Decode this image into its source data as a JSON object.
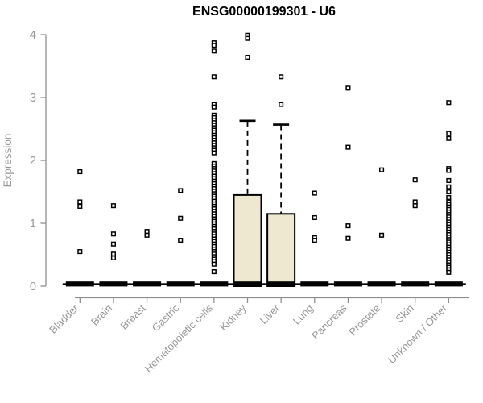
{
  "chart_data": {
    "type": "boxplot",
    "title": "ENSG00000199301 - U6",
    "ylabel": "Expression",
    "xlabel": "",
    "ylim": [
      0,
      4
    ],
    "yticks": [
      0,
      1,
      2,
      3,
      4
    ],
    "grid": false,
    "legend": "none",
    "categories": [
      "Bladder",
      "Brain",
      "Breast",
      "Gastric",
      "Hematopoietic cells",
      "Kidney",
      "Liver",
      "Lung",
      "Pancreas",
      "Prostate",
      "Skin",
      "Unknown / Other"
    ],
    "colors": {
      "box_fill": "#EEE8D1",
      "box_stroke": "#000000",
      "axis": "#8f8f8f",
      "tick_text": "#979797",
      "title_text": "#000000",
      "outlier_fill": "#ffffff",
      "outlier_stroke": "#000000"
    },
    "boxes": [
      {
        "category": "Bladder",
        "median": 0,
        "q1": 0,
        "q3": 0,
        "whisker_low": 0,
        "whisker_high": 0,
        "outliers": [
          1.82,
          1.34,
          1.27,
          0.55
        ]
      },
      {
        "category": "Brain",
        "median": 0,
        "q1": 0,
        "q3": 0,
        "whisker_low": 0,
        "whisker_high": 0,
        "outliers": [
          1.28,
          0.83,
          0.67,
          0.51,
          0.45
        ]
      },
      {
        "category": "Breast",
        "median": 0,
        "q1": 0,
        "q3": 0,
        "whisker_low": 0,
        "whisker_high": 0,
        "outliers": [
          0.87,
          0.81
        ]
      },
      {
        "category": "Gastric",
        "median": 0,
        "q1": 0,
        "q3": 0,
        "whisker_low": 0,
        "whisker_high": 0,
        "outliers": [
          1.52,
          1.08,
          0.73
        ]
      },
      {
        "category": "Hematopoietic cells",
        "median": 0,
        "q1": 0,
        "q3": 0,
        "whisker_low": 0,
        "whisker_high": 0,
        "outliers": [
          3.87,
          3.83,
          3.74,
          3.33,
          2.89,
          2.85,
          2.72,
          2.68,
          2.64,
          2.6,
          2.56,
          2.52,
          2.48,
          2.44,
          2.4,
          2.36,
          2.32,
          2.28,
          2.24,
          2.2,
          2.16,
          2.12,
          1.95,
          1.91,
          1.87,
          1.83,
          1.79,
          1.75,
          1.71,
          1.67,
          1.63,
          1.59,
          1.55,
          1.51,
          1.47,
          1.43,
          1.39,
          1.35,
          1.31,
          1.27,
          1.23,
          1.19,
          1.15,
          1.11,
          1.07,
          1.03,
          0.99,
          0.95,
          0.91,
          0.87,
          0.83,
          0.79,
          0.75,
          0.71,
          0.67,
          0.63,
          0.59,
          0.55,
          0.51,
          0.47,
          0.43,
          0.39,
          0.35,
          0.23
        ]
      },
      {
        "category": "Kidney",
        "median": 0,
        "q1": 0,
        "q3": 1.45,
        "whisker_low": 0,
        "whisker_high": 2.63,
        "outliers": [
          3.99,
          3.94,
          3.64
        ]
      },
      {
        "category": "Liver",
        "median": 0,
        "q1": 0,
        "q3": 1.15,
        "whisker_low": 0,
        "whisker_high": 2.57,
        "outliers": [
          3.33,
          2.89
        ]
      },
      {
        "category": "Lung",
        "median": 0,
        "q1": 0,
        "q3": 0,
        "whisker_low": 0,
        "whisker_high": 0,
        "outliers": [
          1.48,
          1.09,
          0.77,
          0.73
        ]
      },
      {
        "category": "Pancreas",
        "median": 0,
        "q1": 0,
        "q3": 0,
        "whisker_low": 0,
        "whisker_high": 0,
        "outliers": [
          3.15,
          2.21,
          0.96,
          0.76
        ]
      },
      {
        "category": "Prostate",
        "median": 0,
        "q1": 0,
        "q3": 0,
        "whisker_low": 0,
        "whisker_high": 0,
        "outliers": [
          1.85,
          0.81
        ]
      },
      {
        "category": "Skin",
        "median": 0,
        "q1": 0,
        "q3": 0,
        "whisker_low": 0,
        "whisker_high": 0,
        "outliers": [
          1.69,
          1.34,
          1.28
        ]
      },
      {
        "category": "Unknown / Other",
        "median": 0,
        "q1": 0,
        "q3": 0,
        "whisker_low": 0,
        "whisker_high": 0,
        "outliers": [
          2.92,
          2.43,
          2.35,
          1.87,
          1.84,
          1.68,
          1.58,
          1.5,
          1.41,
          1.34,
          1.3,
          1.26,
          1.22,
          1.18,
          1.14,
          1.1,
          1.06,
          1.02,
          0.98,
          0.94,
          0.9,
          0.86,
          0.82,
          0.78,
          0.74,
          0.7,
          0.66,
          0.62,
          0.58,
          0.54,
          0.5,
          0.46,
          0.42,
          0.38,
          0.34,
          0.3,
          0.26,
          0.22
        ]
      }
    ]
  }
}
